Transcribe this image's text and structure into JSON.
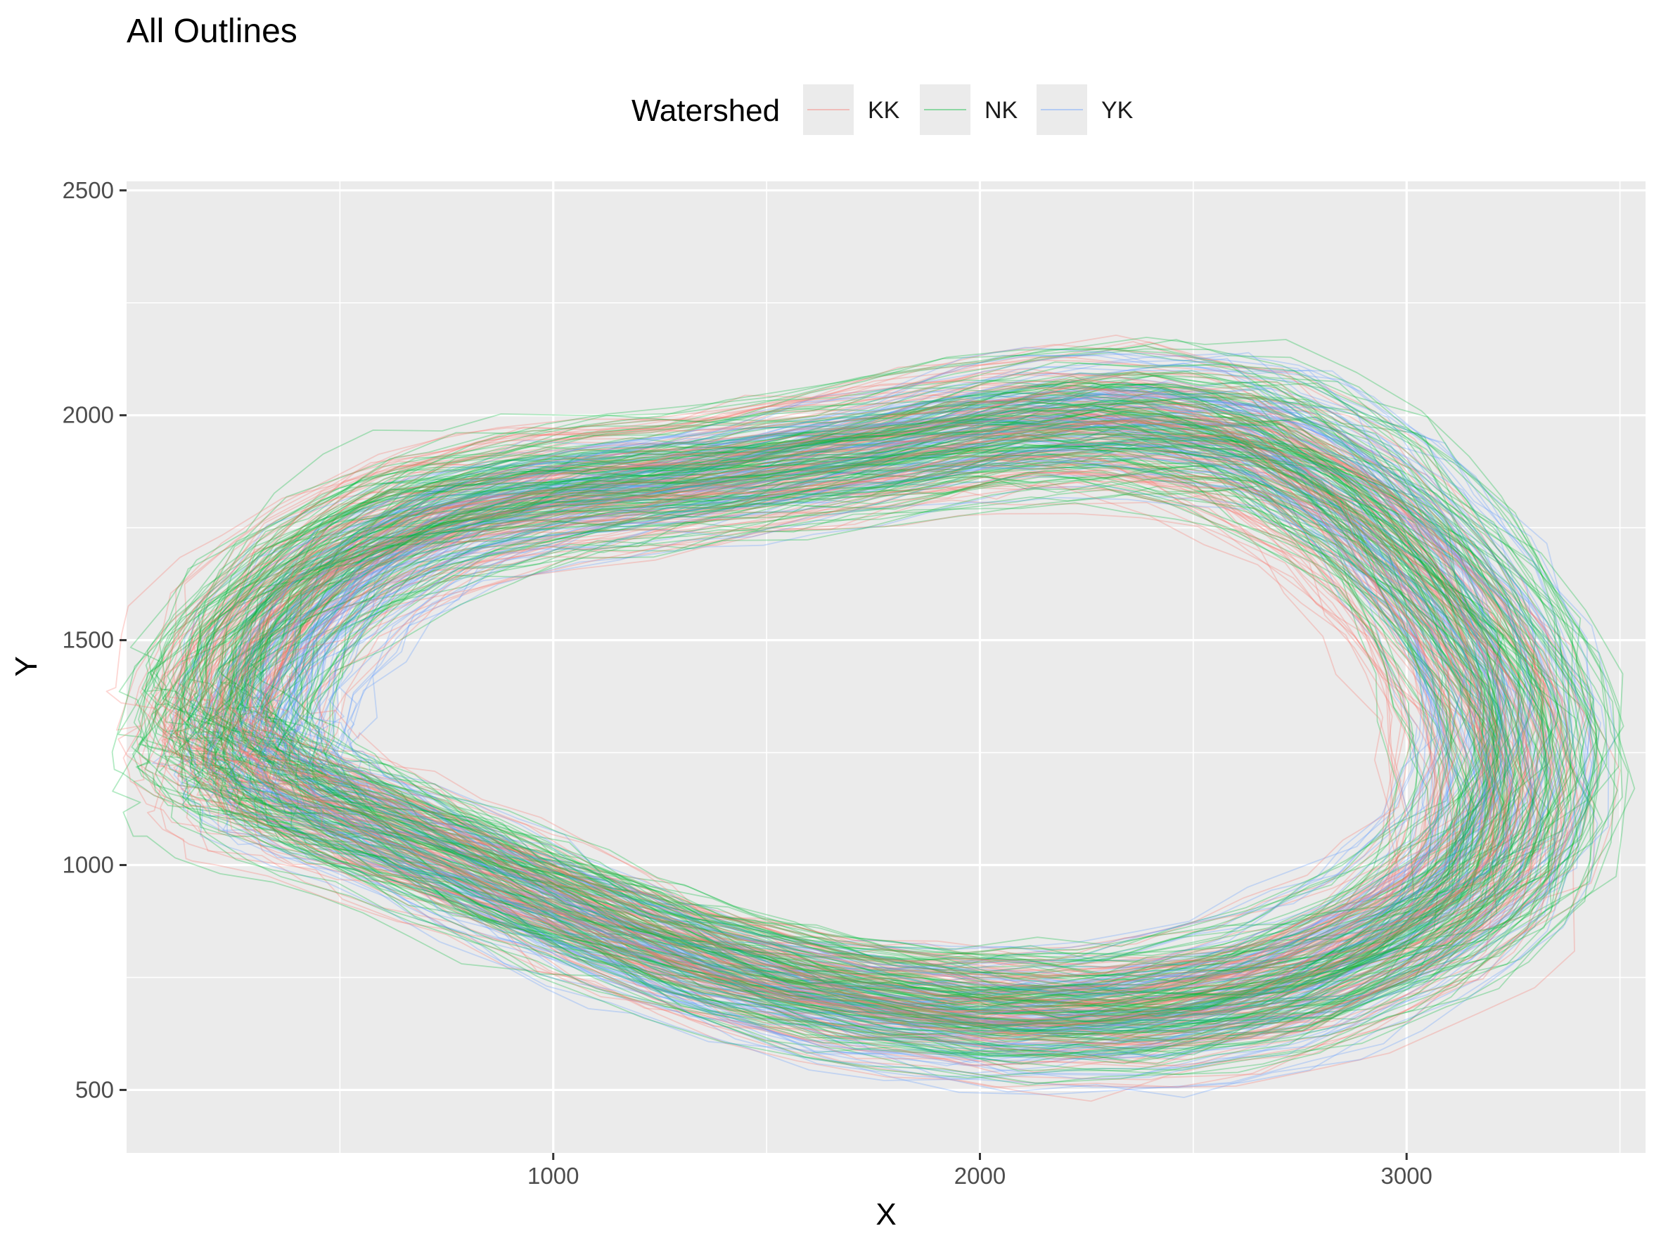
{
  "chart_data": {
    "type": "line",
    "title": "All Outlines",
    "xlabel": "X",
    "ylabel": "Y",
    "xlim": [
      0,
      3560
    ],
    "ylim": [
      360,
      2520
    ],
    "x_ticks": [
      1000,
      2000,
      3000
    ],
    "y_ticks": [
      500,
      1000,
      1500,
      2000,
      2500
    ],
    "grid": true,
    "legend": {
      "title": "Watershed",
      "position": "top",
      "entries": [
        {
          "name": "KK",
          "color": "#F8766D"
        },
        {
          "name": "NK",
          "color": "#00BA38"
        },
        {
          "name": "YK",
          "color": "#619CFF"
        }
      ]
    },
    "series": [
      {
        "name": "KK",
        "color": "#F8766D",
        "count": 110,
        "outline_template": {
          "x": [
            200,
            260,
            420,
            650,
            950,
            1300,
            1650,
            2000,
            2300,
            2600,
            2850,
            3050,
            3200,
            3250,
            3200,
            3000,
            2700,
            2350,
            2000,
            1650,
            1350,
            1100,
            850,
            600,
            400,
            280,
            220
          ],
          "y": [
            1300,
            1480,
            1650,
            1770,
            1830,
            1870,
            1920,
            1980,
            2000,
            1960,
            1830,
            1640,
            1420,
            1200,
            1000,
            850,
            730,
            680,
            680,
            720,
            790,
            880,
            980,
            1080,
            1150,
            1200,
            1250
          ]
        }
      },
      {
        "name": "NK",
        "color": "#00BA38",
        "count": 130,
        "outline_template": {
          "x": [
            180,
            250,
            430,
            680,
            1000,
            1350,
            1700,
            2050,
            2350,
            2650,
            2900,
            3100,
            3250,
            3300,
            3230,
            3030,
            2730,
            2380,
            2020,
            1660,
            1340,
            1080,
            820,
            570,
            380,
            260,
            200
          ],
          "y": [
            1320,
            1500,
            1670,
            1790,
            1850,
            1880,
            1930,
            1990,
            2010,
            1970,
            1840,
            1650,
            1430,
            1210,
            1000,
            840,
            720,
            660,
            660,
            700,
            780,
            870,
            970,
            1070,
            1140,
            1200,
            1260
          ]
        }
      },
      {
        "name": "YK",
        "color": "#619CFF",
        "count": 90,
        "outline_template": {
          "x": [
            300,
            350,
            500,
            720,
            1020,
            1370,
            1720,
            2070,
            2380,
            2680,
            2930,
            3120,
            3240,
            3280,
            3210,
            3010,
            2710,
            2360,
            2000,
            1640,
            1330,
            1080,
            850,
            620,
            440,
            340,
            300
          ],
          "y": [
            1310,
            1480,
            1640,
            1760,
            1830,
            1870,
            1930,
            1990,
            2010,
            1970,
            1840,
            1650,
            1430,
            1210,
            1000,
            850,
            720,
            660,
            650,
            690,
            770,
            860,
            960,
            1060,
            1130,
            1190,
            1250
          ]
        }
      }
    ]
  }
}
